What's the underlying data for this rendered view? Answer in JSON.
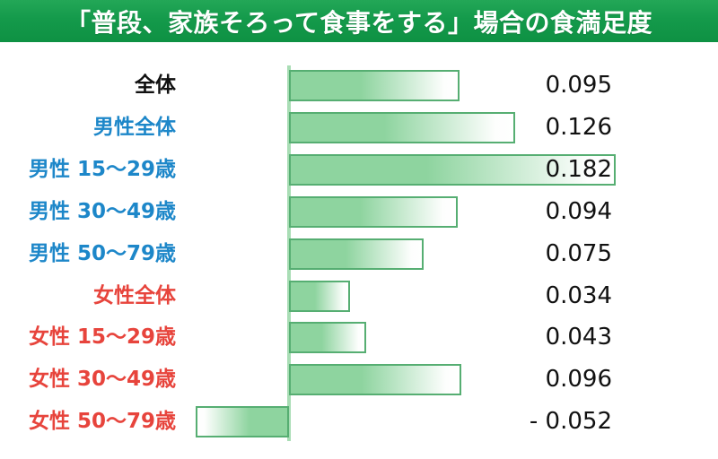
{
  "banner": {
    "title": "「普段、家族そろって食事をする」場合の食満足度",
    "bg_color": "#149a4b",
    "text_color": "#ffffff"
  },
  "chart_data": {
    "type": "bar",
    "orientation": "horizontal",
    "title": "「普段、家族そろって食事をする」場合の食満足度",
    "categories": [
      "全体",
      "男性全体",
      "男性 15〜29歳",
      "男性 30〜49歳",
      "男性 50〜79歳",
      "女性全体",
      "女性 15〜29歳",
      "女性 30〜49歳",
      "女性 50〜79歳"
    ],
    "values": [
      0.095,
      0.126,
      0.182,
      0.094,
      0.075,
      0.034,
      0.043,
      0.096,
      -0.052
    ],
    "value_labels": [
      "0.095",
      "0.126",
      "0.182",
      "0.094",
      "0.075",
      "0.034",
      "0.043",
      "0.096",
      "- 0.052"
    ],
    "label_color_keys": [
      "black",
      "blue",
      "blue",
      "blue",
      "blue",
      "red",
      "red",
      "red",
      "red"
    ],
    "xlabel": "",
    "ylabel": "",
    "xlim": [
      -0.06,
      0.2
    ],
    "grid": false,
    "legend": false,
    "notes": "value of third bar (0.182) is rendered inside the bar; last bar is negative and extends left of the baseline axis"
  },
  "colors": {
    "bar_fill": "#8ed49f",
    "bar_border": "#56ae72",
    "axis_line": "#a9ddb5",
    "label_overall": "#111111",
    "label_male": "#1d87c9",
    "label_female": "#e7443c",
    "value_text": "#111111"
  }
}
